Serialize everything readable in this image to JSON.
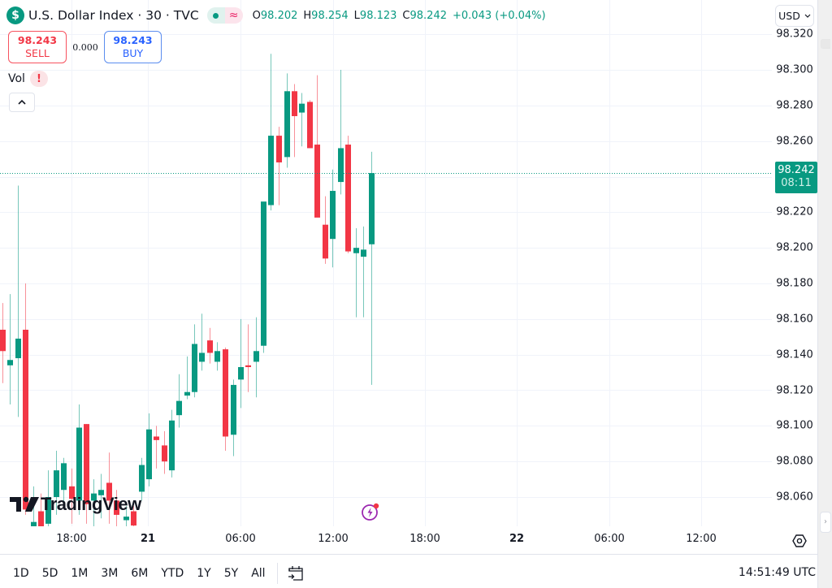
{
  "header": {
    "symbol_icon": "$",
    "title": "U.S. Dollar Index · 30 · TVC",
    "status_live_icon": "dot-icon",
    "status_delay_icon": "≈",
    "ohlc": {
      "open_label": "O",
      "open": "98.202",
      "high_label": "H",
      "high": "98.254",
      "low_label": "L",
      "low": "98.123",
      "close_label": "C",
      "close": "98.242",
      "change": "+0.043 (+0.04%)"
    }
  },
  "trade": {
    "sell_price": "98.243",
    "sell_label": "SELL",
    "spread": "0.000",
    "buy_price": "98.243",
    "buy_label": "BUY"
  },
  "indicator": {
    "label": "Vol",
    "warning": "!"
  },
  "currency": {
    "selected": "USD",
    "chevron": "˅"
  },
  "price_axis": {
    "labels": [
      "98.320",
      "98.300",
      "98.280",
      "98.260",
      "98.220",
      "98.200",
      "98.180",
      "98.160",
      "98.140",
      "98.120",
      "98.100",
      "98.080",
      "98.060"
    ],
    "last_price": "98.242",
    "countdown": "08:11"
  },
  "time_axis": {
    "labels": [
      {
        "text": "18:00",
        "bold": false
      },
      {
        "text": "21",
        "bold": true
      },
      {
        "text": "06:00",
        "bold": false
      },
      {
        "text": "12:00",
        "bold": false
      },
      {
        "text": "18:00",
        "bold": false
      },
      {
        "text": "22",
        "bold": true
      },
      {
        "text": "06:00",
        "bold": false
      },
      {
        "text": "12:00",
        "bold": false
      }
    ]
  },
  "watermark": {
    "logo": "17",
    "text": "TradingView"
  },
  "bottom_bar": {
    "ranges": [
      "1D",
      "5D",
      "1M",
      "3M",
      "6M",
      "YTD",
      "1Y",
      "5Y",
      "All"
    ],
    "clock": "14:51:49 UTC"
  },
  "colors": {
    "up": "#089981",
    "down": "#f23645",
    "grid": "#f0f3fa",
    "last_price_line": "#089981"
  },
  "chart_data": {
    "type": "candlestick",
    "title": "U.S. Dollar Index · 30 · TVC",
    "interval": "30m",
    "ylabel": "USD",
    "ylim": [
      98.045,
      98.327
    ],
    "grid": true,
    "y_ticks": [
      98.06,
      98.08,
      98.1,
      98.12,
      98.14,
      98.16,
      98.18,
      98.2,
      98.22,
      98.24,
      98.26,
      98.28,
      98.3,
      98.32
    ],
    "x_ticks": [
      "18:00",
      "21",
      "06:00",
      "12:00",
      "18:00",
      "22",
      "06:00",
      "12:00"
    ],
    "last": {
      "open": 98.202,
      "high": 98.254,
      "low": 98.123,
      "close": 98.242,
      "change": 0.043,
      "change_pct": 0.04
    },
    "candles": [
      {
        "x": 3,
        "o": 98.142,
        "h": 98.169,
        "l": 98.124,
        "c": 98.154,
        "up": false
      },
      {
        "x": 12,
        "o": 98.134,
        "h": 98.174,
        "l": 98.112,
        "c": 98.137,
        "up": true
      },
      {
        "x": 22,
        "o": 98.138,
        "h": 98.235,
        "l": 98.105,
        "c": 98.149,
        "up": true
      },
      {
        "x": 31,
        "o": 98.154,
        "h": 98.18,
        "l": 98.05,
        "c": 98.053,
        "up": false
      },
      {
        "x": 41,
        "o": 98.04,
        "h": 98.066,
        "l": 98.03,
        "c": 98.046,
        "up": true
      },
      {
        "x": 50,
        "o": 98.052,
        "h": 98.062,
        "l": 98.03,
        "c": 98.041,
        "up": false
      },
      {
        "x": 59,
        "o": 98.045,
        "h": 98.075,
        "l": 98.035,
        "c": 98.06,
        "up": true
      },
      {
        "x": 69,
        "o": 98.06,
        "h": 98.086,
        "l": 98.05,
        "c": 98.075,
        "up": true
      },
      {
        "x": 78,
        "o": 98.079,
        "h": 98.082,
        "l": 98.055,
        "c": 98.064,
        "up": true
      },
      {
        "x": 88,
        "o": 98.066,
        "h": 98.076,
        "l": 98.045,
        "c": 98.059,
        "up": false
      },
      {
        "x": 97,
        "o": 98.058,
        "h": 98.112,
        "l": 98.05,
        "c": 98.099,
        "up": true
      },
      {
        "x": 106,
        "o": 98.101,
        "h": 98.101,
        "l": 98.045,
        "c": 98.056,
        "up": false
      },
      {
        "x": 115,
        "o": 98.058,
        "h": 98.07,
        "l": 98.042,
        "c": 98.062,
        "up": true
      },
      {
        "x": 124,
        "o": 98.061,
        "h": 98.073,
        "l": 98.048,
        "c": 98.064,
        "up": true
      },
      {
        "x": 134,
        "o": 98.068,
        "h": 98.085,
        "l": 98.045,
        "c": 98.058,
        "up": false
      },
      {
        "x": 143,
        "o": 98.058,
        "h": 98.064,
        "l": 98.04,
        "c": 98.05,
        "up": false
      },
      {
        "x": 155,
        "o": 98.047,
        "h": 98.055,
        "l": 98.035,
        "c": 98.049,
        "up": true
      },
      {
        "x": 164,
        "o": 98.052,
        "h": 98.055,
        "l": 98.035,
        "c": 98.044,
        "up": false
      },
      {
        "x": 174,
        "o": 98.063,
        "h": 98.082,
        "l": 98.058,
        "c": 98.078,
        "up": true
      },
      {
        "x": 183,
        "o": 98.07,
        "h": 98.107,
        "l": 98.066,
        "c": 98.098,
        "up": true
      },
      {
        "x": 192,
        "o": 98.094,
        "h": 98.1,
        "l": 98.076,
        "c": 98.092,
        "up": false
      },
      {
        "x": 202,
        "o": 98.089,
        "h": 98.097,
        "l": 98.073,
        "c": 98.08,
        "up": false
      },
      {
        "x": 211,
        "o": 98.075,
        "h": 98.109,
        "l": 98.071,
        "c": 98.103,
        "up": true
      },
      {
        "x": 220,
        "o": 98.106,
        "h": 98.129,
        "l": 98.099,
        "c": 98.114,
        "up": true
      },
      {
        "x": 230,
        "o": 98.117,
        "h": 98.139,
        "l": 98.115,
        "c": 98.119,
        "up": true
      },
      {
        "x": 239,
        "o": 98.119,
        "h": 98.157,
        "l": 98.116,
        "c": 98.146,
        "up": true
      },
      {
        "x": 248,
        "o": 98.136,
        "h": 98.163,
        "l": 98.131,
        "c": 98.141,
        "up": true
      },
      {
        "x": 258,
        "o": 98.148,
        "h": 98.155,
        "l": 98.135,
        "c": 98.141,
        "up": false
      },
      {
        "x": 267,
        "o": 98.136,
        "h": 98.147,
        "l": 98.131,
        "c": 98.142,
        "up": true
      },
      {
        "x": 277,
        "o": 98.143,
        "h": 98.144,
        "l": 98.086,
        "c": 98.094,
        "up": false
      },
      {
        "x": 287,
        "o": 98.095,
        "h": 98.126,
        "l": 98.083,
        "c": 98.123,
        "up": true
      },
      {
        "x": 296,
        "o": 98.126,
        "h": 98.16,
        "l": 98.11,
        "c": 98.133,
        "up": true
      },
      {
        "x": 305,
        "o": 98.133,
        "h": 98.157,
        "l": 98.119,
        "c": 98.134,
        "up": false
      },
      {
        "x": 315,
        "o": 98.136,
        "h": 98.161,
        "l": 98.116,
        "c": 98.142,
        "up": true
      },
      {
        "x": 324,
        "o": 98.145,
        "h": 98.225,
        "l": 98.141,
        "c": 98.226,
        "up": true
      },
      {
        "x": 333,
        "o": 98.224,
        "h": 98.309,
        "l": 98.221,
        "c": 98.263,
        "up": true
      },
      {
        "x": 343,
        "o": 98.263,
        "h": 98.268,
        "l": 98.224,
        "c": 98.248,
        "up": false
      },
      {
        "x": 353,
        "o": 98.251,
        "h": 98.298,
        "l": 98.245,
        "c": 98.288,
        "up": true
      },
      {
        "x": 362,
        "o": 98.288,
        "h": 98.292,
        "l": 98.251,
        "c": 98.274,
        "up": false
      },
      {
        "x": 371,
        "o": 98.276,
        "h": 98.287,
        "l": 98.257,
        "c": 98.281,
        "up": true
      },
      {
        "x": 381,
        "o": 98.282,
        "h": 98.283,
        "l": 98.256,
        "c": 98.256,
        "up": false
      },
      {
        "x": 390,
        "o": 98.258,
        "h": 98.297,
        "l": 98.22,
        "c": 98.217,
        "up": false
      },
      {
        "x": 400,
        "o": 98.213,
        "h": 98.229,
        "l": 98.191,
        "c": 98.194,
        "up": false
      },
      {
        "x": 409,
        "o": 98.205,
        "h": 98.244,
        "l": 98.189,
        "c": 98.232,
        "up": true
      },
      {
        "x": 419,
        "o": 98.237,
        "h": 98.3,
        "l": 98.23,
        "c": 98.256,
        "up": true
      },
      {
        "x": 428,
        "o": 98.258,
        "h": 98.263,
        "l": 98.197,
        "c": 98.198,
        "up": false
      },
      {
        "x": 438,
        "o": 98.197,
        "h": 98.211,
        "l": 98.161,
        "c": 98.2,
        "up": true
      },
      {
        "x": 447,
        "o": 98.195,
        "h": 98.212,
        "l": 98.161,
        "c": 98.199,
        "up": true
      },
      {
        "x": 457,
        "o": 98.202,
        "h": 98.254,
        "l": 98.123,
        "c": 98.242,
        "up": true
      }
    ]
  }
}
